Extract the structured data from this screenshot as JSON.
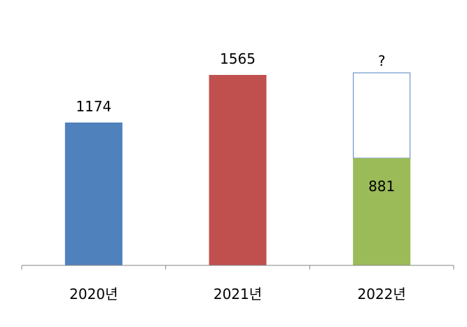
{
  "chart_data": {
    "type": "bar",
    "categories": [
      "2020년",
      "2021년",
      "2022년"
    ],
    "values": [
      1174,
      1565,
      881
    ],
    "value_labels": [
      "1174",
      "1565",
      "881"
    ],
    "colors": [
      "#4F81BD",
      "#C0504D",
      "#9BBB59"
    ],
    "unknown_portion": {
      "category": "2022년",
      "label": "?",
      "total_height_value": 1565,
      "fill": "#FFFFFF",
      "outline": "#4F81BD"
    },
    "ylim": [
      0,
      1700
    ],
    "grid": false,
    "legend": "none",
    "title": "",
    "xlabel": "",
    "ylabel": ""
  }
}
